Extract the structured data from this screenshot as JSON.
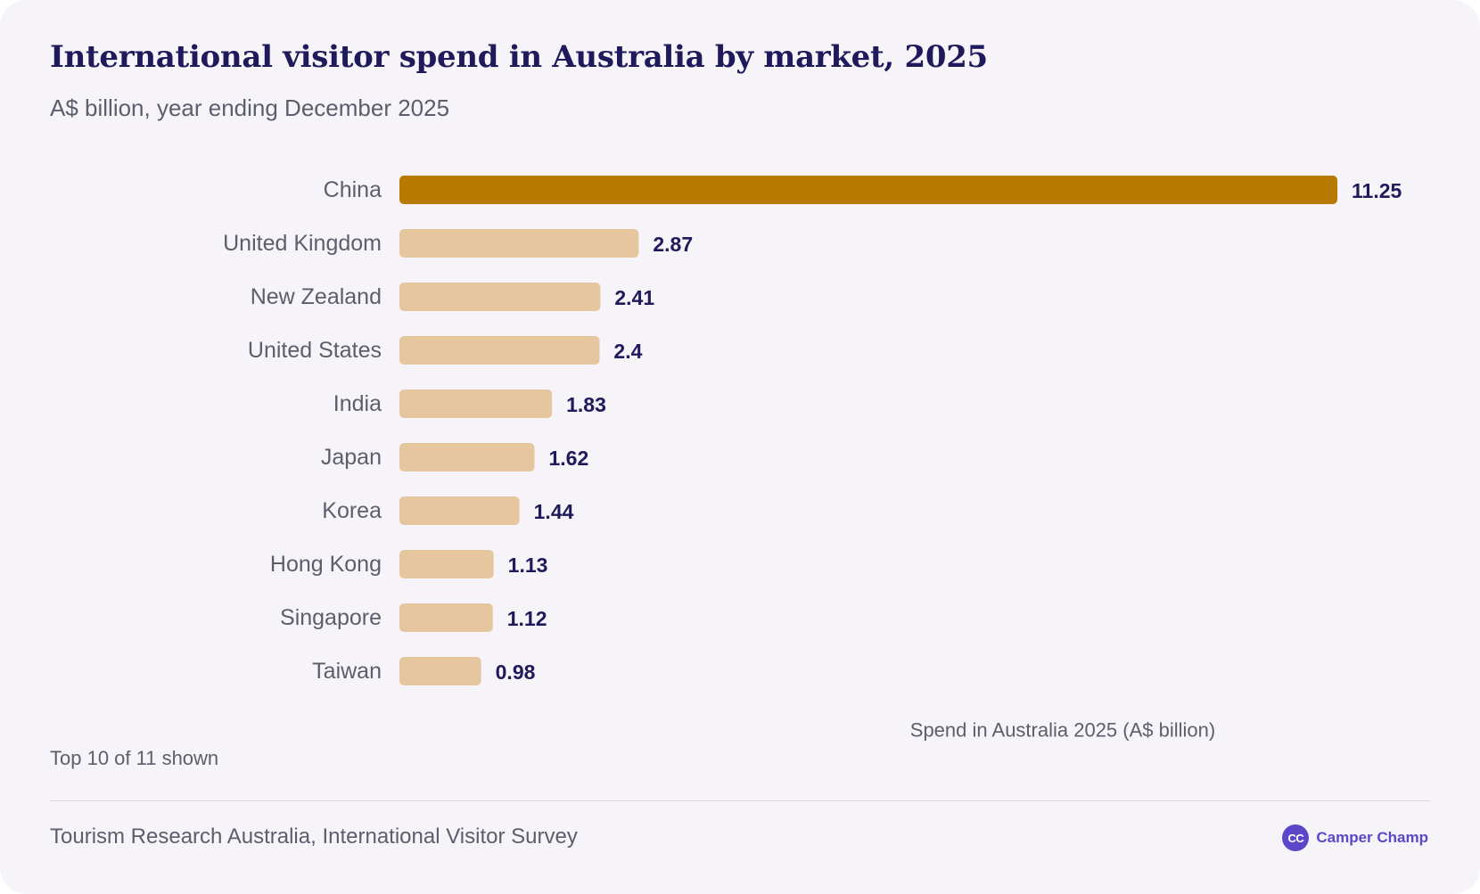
{
  "header": {
    "title": "International visitor spend in Australia by market, 2025",
    "subtitle": "A$ billion, year ending December 2025"
  },
  "footer": {
    "note": "Top 10 of 11 shown",
    "source": "Tourism Research Australia, International Visitor Survey",
    "brand_badge": "CC",
    "brand_name": "Camper Champ"
  },
  "colors": {
    "highlight_bar": "#b87a00",
    "bar": "#e6c69e",
    "title": "#1f1a5c",
    "brand": "#5a48c9"
  },
  "chart_data": {
    "type": "bar",
    "orientation": "horizontal",
    "title": "International visitor spend in Australia by market, 2025",
    "subtitle": "A$ billion, year ending December 2025",
    "xlabel": "Spend in Australia 2025 (A$ billion)",
    "ylabel": "",
    "categories": [
      "China",
      "United Kingdom",
      "New Zealand",
      "United States",
      "India",
      "Japan",
      "Korea",
      "Hong Kong",
      "Singapore",
      "Taiwan"
    ],
    "values": [
      11.25,
      2.87,
      2.41,
      2.4,
      1.83,
      1.62,
      1.44,
      1.13,
      1.12,
      0.98
    ],
    "value_labels": [
      "11.25",
      "2.87",
      "2.41",
      "2.4",
      "1.83",
      "1.62",
      "1.44",
      "1.13",
      "1.12",
      "0.98"
    ],
    "highlight_category": "China",
    "xlim": [
      0,
      11.25
    ],
    "grid": false,
    "legend": "none"
  }
}
